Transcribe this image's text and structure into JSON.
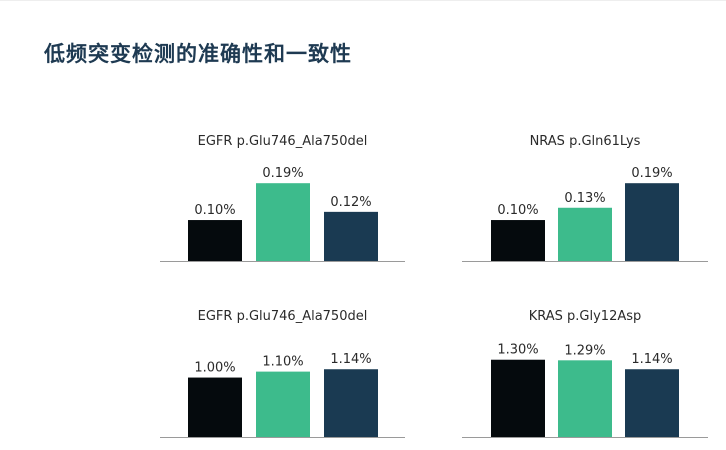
{
  "page": {
    "title": "低频突变检测的准确性和一致性"
  },
  "colors": {
    "title": "#1e3a52",
    "series": [
      "#050a0d",
      "#3dbb8c",
      "#1a3a52"
    ],
    "axis": "#9a9a9a",
    "text": "#2a2a2a"
  },
  "chart_data": [
    {
      "type": "bar",
      "title": "EGFR p.Glu746_Ala750del",
      "values": [
        0.1,
        0.19,
        0.12
      ],
      "labels": [
        "0.10%",
        "0.19%",
        "0.12%"
      ],
      "ylim": [
        0,
        0.21
      ],
      "grid": false
    },
    {
      "type": "bar",
      "title": "NRAS p.Gln61Lys",
      "values": [
        0.1,
        0.13,
        0.19
      ],
      "labels": [
        "0.10%",
        "0.13%",
        "0.19%"
      ],
      "ylim": [
        0,
        0.21
      ],
      "grid": false
    },
    {
      "type": "bar",
      "title": "EGFR p.Glu746_Ala750del",
      "values": [
        1.0,
        1.1,
        1.14
      ],
      "labels": [
        "1.00%",
        "1.10%",
        "1.14%"
      ],
      "ylim": [
        0,
        1.8
      ],
      "grid": false
    },
    {
      "type": "bar",
      "title": "KRAS p.Gly12Asp",
      "values": [
        1.3,
        1.29,
        1.14
      ],
      "labels": [
        "1.30%",
        "1.29%",
        "1.14%"
      ],
      "ylim": [
        0,
        1.8
      ],
      "grid": false
    }
  ]
}
